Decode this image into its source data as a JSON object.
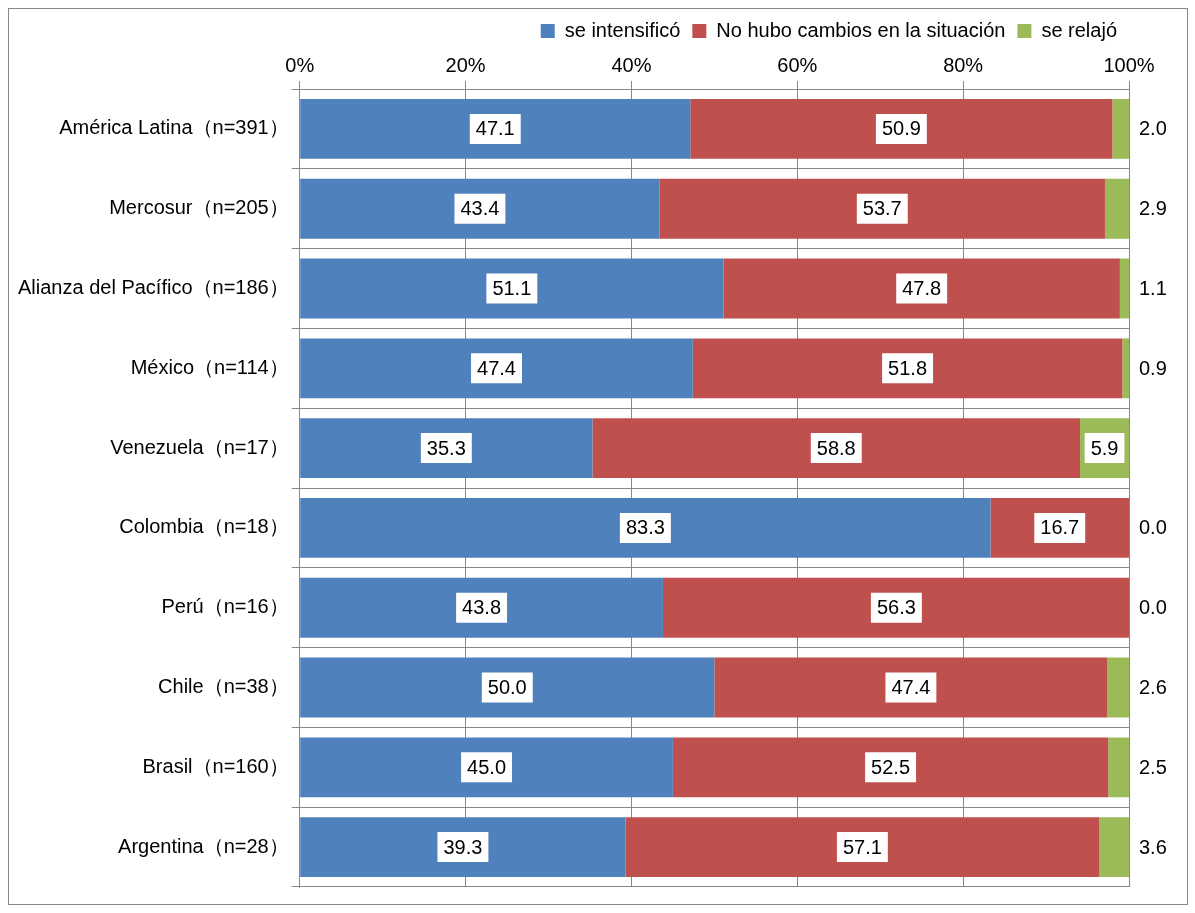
{
  "chart_data": {
    "type": "bar",
    "orientation": "horizontal",
    "stacked": true,
    "legend": "top",
    "grid": true,
    "categories": [
      "América Latina（n=391）",
      "Mercosur（n=205）",
      "Alianza del Pacífico（n=186）",
      "México（n=114）",
      "Venezuela（n=17）",
      "Colombia（n=18）",
      "Perú（n=16）",
      "Chile（n=38）",
      "Brasil（n=160）",
      "Argentina（n=28）"
    ],
    "xlim": [
      0,
      100
    ],
    "xticks": [
      {
        "value": 0,
        "label": "0%"
      },
      {
        "value": 20,
        "label": "20%"
      },
      {
        "value": 40,
        "label": "40%"
      },
      {
        "value": 60,
        "label": "60%"
      },
      {
        "value": 80,
        "label": "80%"
      },
      {
        "value": 100,
        "label": "100%"
      }
    ],
    "series": [
      {
        "name": "se intensificó",
        "color": "#4f81bd",
        "values": [
          47.1,
          43.4,
          51.1,
          47.4,
          35.3,
          83.3,
          43.8,
          50.0,
          45.0,
          39.3
        ],
        "value_labels": [
          "47.1",
          "43.4",
          "51.1",
          "47.4",
          "35.3",
          "83.3",
          "43.8",
          "50.0",
          "45.0",
          "39.3"
        ]
      },
      {
        "name": "No hubo cambios en la situación",
        "color": "#c0504d",
        "values": [
          50.9,
          53.7,
          47.8,
          51.8,
          58.8,
          16.7,
          56.3,
          47.4,
          52.5,
          57.1
        ],
        "value_labels": [
          "50.9",
          "53.7",
          "47.8",
          "51.8",
          "58.8",
          "16.7",
          "56.3",
          "47.4",
          "52.5",
          "57.1"
        ]
      },
      {
        "name": "se relajó",
        "color": "#9bbb59",
        "values": [
          2.0,
          2.9,
          1.1,
          0.9,
          5.9,
          0.0,
          0.0,
          2.6,
          2.5,
          3.6
        ],
        "value_labels": [
          "2.0",
          "2.9",
          "1.1",
          "0.9",
          "5.9",
          "0.0",
          "0.0",
          "2.6",
          "2.5",
          "3.6"
        ]
      }
    ]
  }
}
